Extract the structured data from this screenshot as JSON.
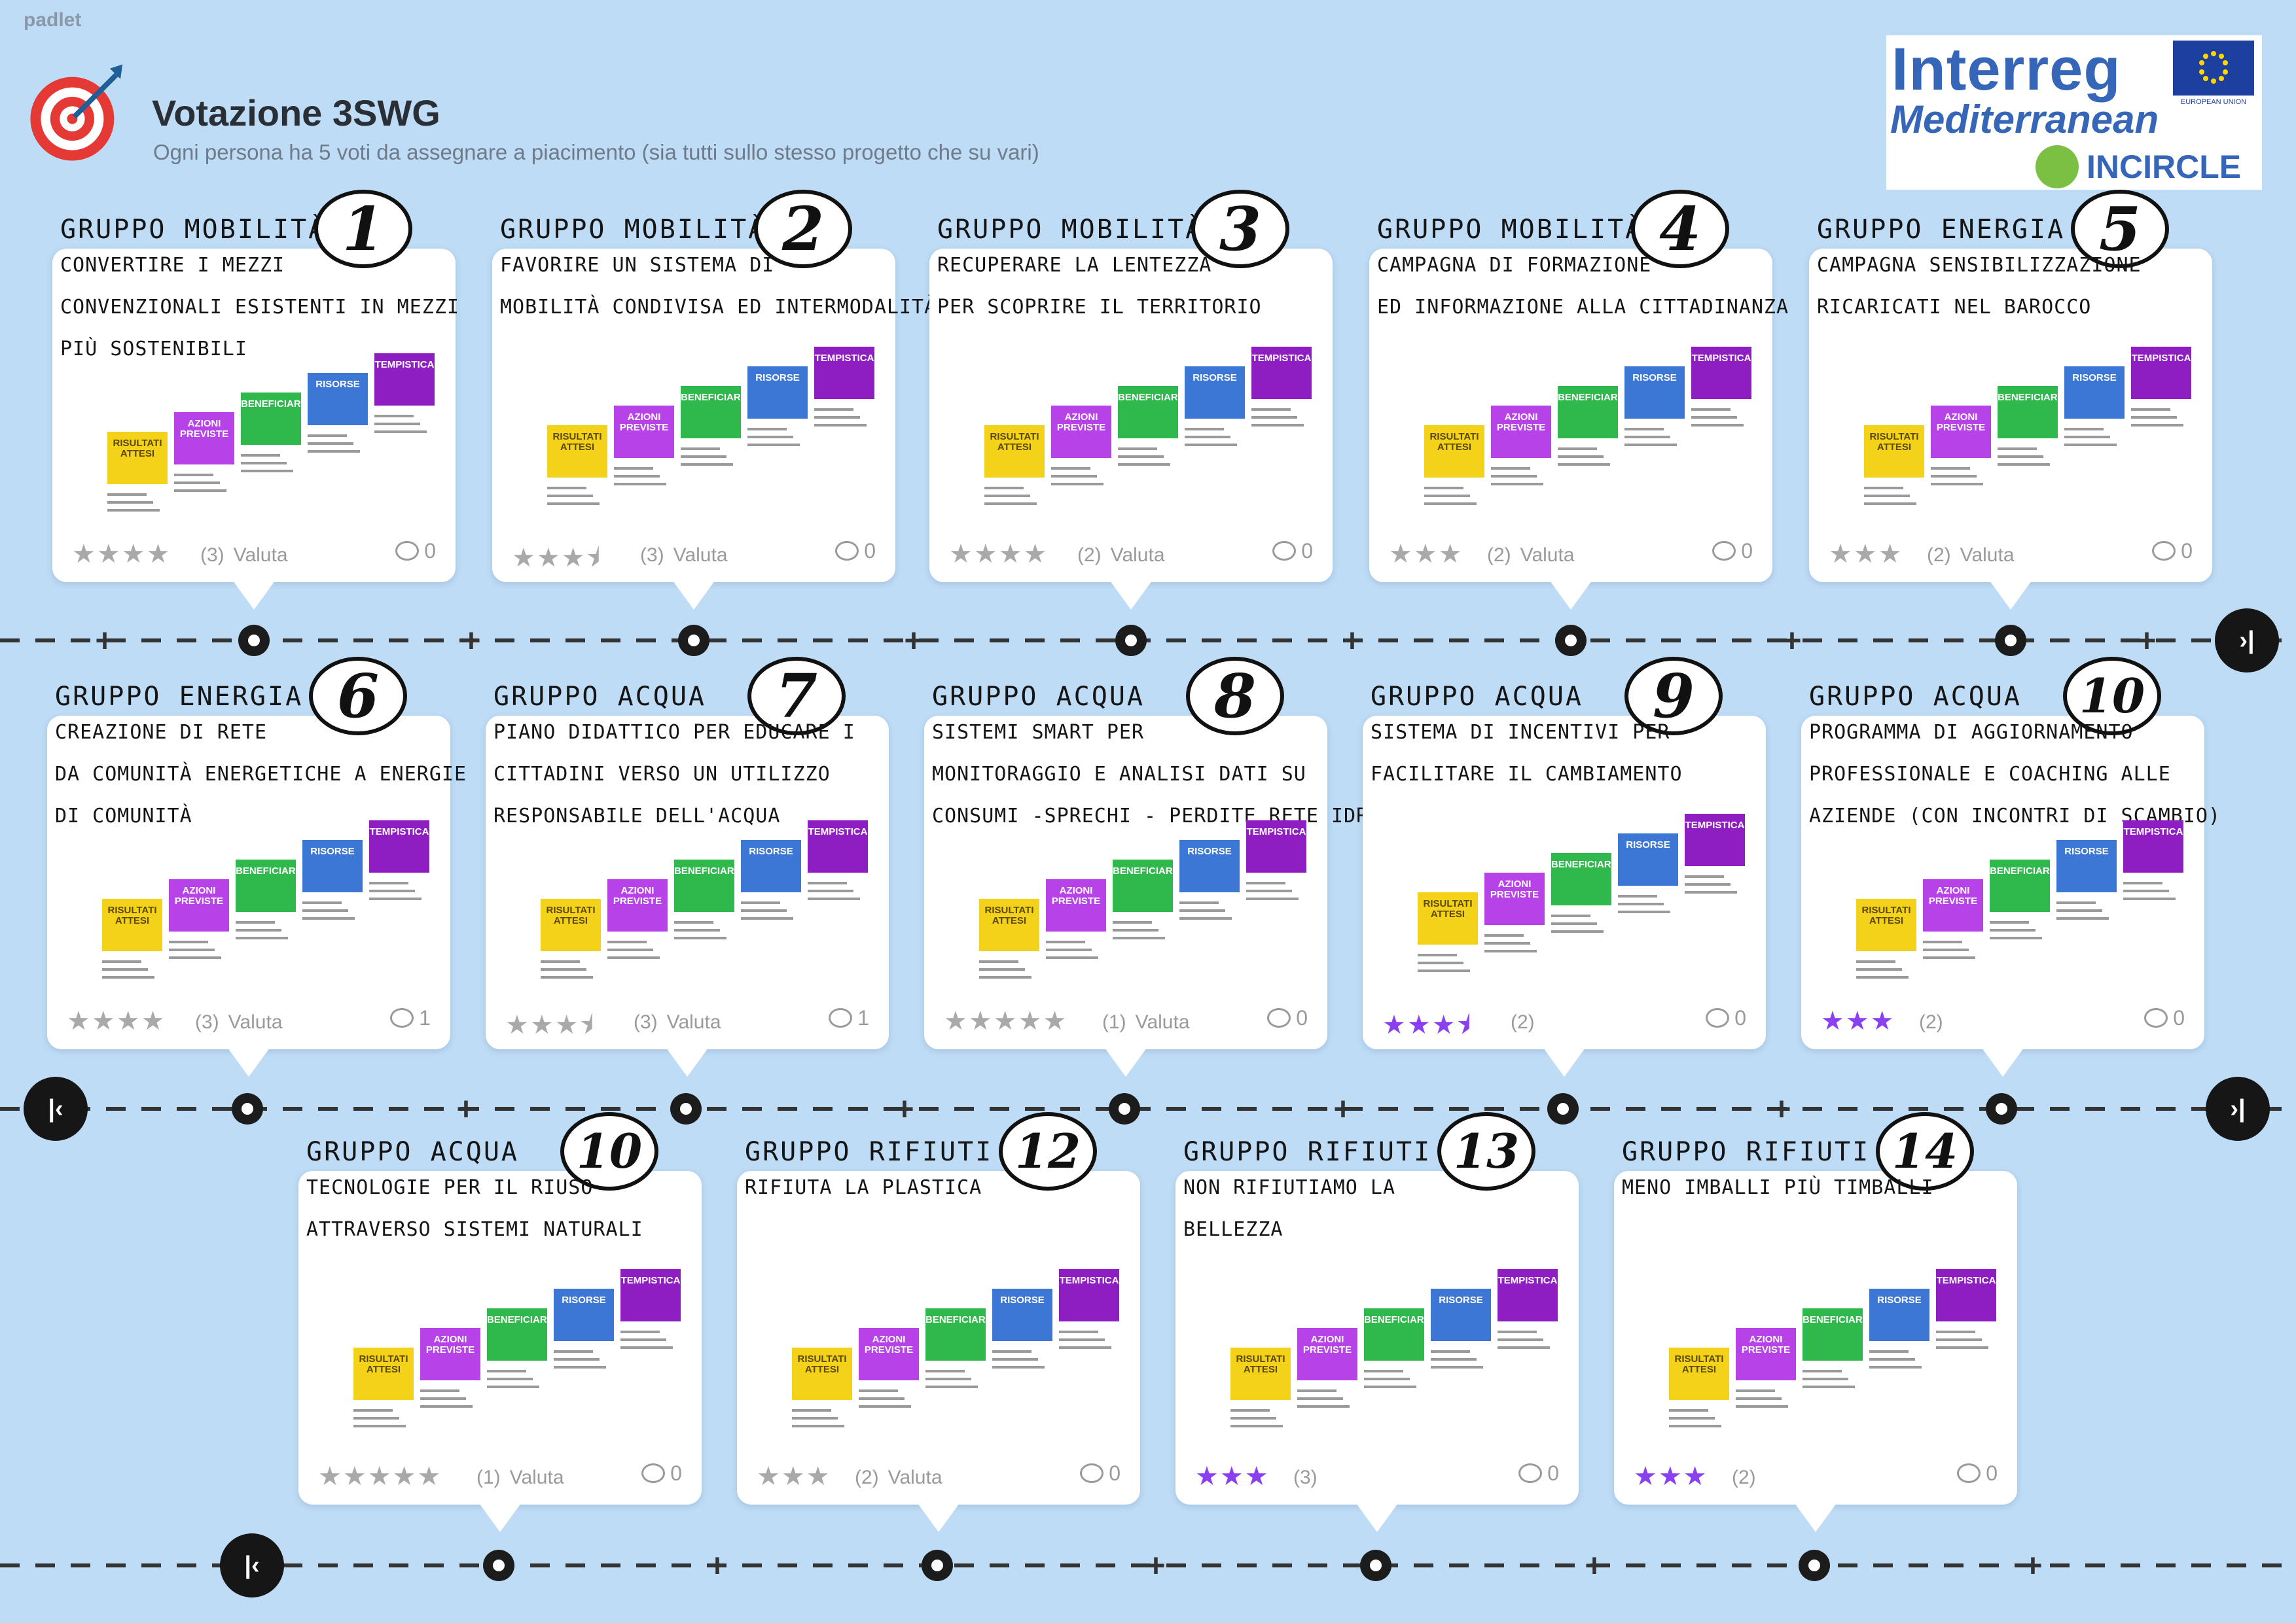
{
  "app": {
    "brand": "padlet"
  },
  "header": {
    "title": "Votazione 3SWG",
    "subtitle": "Ogni persona ha 5 voti da assegnare a piacimento (sia tutti sullo stesso progetto che su vari)"
  },
  "logo": {
    "interreg": "Interreg",
    "mediterranean": "Mediterranean",
    "eu_label": "EUROPEAN UNION",
    "incircle": "INCIRCLE"
  },
  "colors": {
    "background": "#bfdcf6",
    "star_voted": "#8a3ff0",
    "star_default": "#a9a9a9"
  },
  "thumbnail_labels": {
    "risultati": "RISULTATI ATTESI",
    "azioni": "AZIONI PREVISTE",
    "beneficiari": "BENEFICIARI",
    "risorse": "RISORSE",
    "tempistica": "TEMPISTICA"
  },
  "cards": [
    {
      "number": "1",
      "group": "GRUPPO MOBILITÀ",
      "description": [
        "CONVERTIRE I MEZZI",
        "CONVENZIONALI ESISTENTI IN MEZZI",
        "PIÙ SOSTENIBILI"
      ],
      "stars": "★★★★",
      "star_color": "grey",
      "count": "(3)",
      "rate_label": "Valuta",
      "comments": "0"
    },
    {
      "number": "2",
      "group": "GRUPPO MOBILITÀ",
      "description": [
        "FAVORIRE UN SISTEMA DI",
        "MOBILITÀ CONDIVISA ED INTERMODALITÀ"
      ],
      "stars": "★★★⯨",
      "star_color": "grey",
      "count": "(3)",
      "rate_label": "Valuta",
      "comments": "0"
    },
    {
      "number": "3",
      "group": "GRUPPO MOBILITÀ",
      "description": [
        "RECUPERARE LA LENTEZZA",
        "PER SCOPRIRE IL TERRITORIO"
      ],
      "stars": "★★★★",
      "star_color": "grey",
      "count": "(2)",
      "rate_label": "Valuta",
      "comments": "0"
    },
    {
      "number": "4",
      "group": "GRUPPO MOBILITÀ",
      "description": [
        "CAMPAGNA DI FORMAZIONE",
        "ED INFORMAZIONE ALLA CITTADINANZA"
      ],
      "stars": "★★★",
      "star_color": "grey",
      "count": "(2)",
      "rate_label": "Valuta",
      "comments": "0"
    },
    {
      "number": "5",
      "group": "GRUPPO ENERGIA",
      "description": [
        "CAMPAGNA SENSIBILIZZAZIONE",
        "RICARICATI NEL BAROCCO"
      ],
      "stars": "★★★",
      "star_color": "grey",
      "count": "(2)",
      "rate_label": "Valuta",
      "comments": "0"
    },
    {
      "number": "6",
      "group": "GRUPPO ENERGIA",
      "description": [
        "CREAZIONE DI RETE",
        "DA COMUNITÀ ENERGETICHE A ENERGIE",
        "DI COMUNITÀ"
      ],
      "stars": "★★★★",
      "star_color": "grey",
      "count": "(3)",
      "rate_label": "Valuta",
      "comments": "1"
    },
    {
      "number": "7",
      "group": "GRUPPO ACQUA",
      "description": [
        "PIANO DIDATTICO PER EDUCARE I",
        "CITTADINI VERSO UN UTILIZZO",
        "RESPONSABILE DELL'ACQUA"
      ],
      "stars": "★★★⯨",
      "star_color": "grey",
      "count": "(3)",
      "rate_label": "Valuta",
      "comments": "1"
    },
    {
      "number": "8",
      "group": "GRUPPO ACQUA",
      "description": [
        "SISTEMI SMART PER",
        "MONITORAGGIO E ANALISI DATI SU",
        "CONSUMI -SPRECHI - PERDITE RETE IDRICA"
      ],
      "stars": "★★★★★",
      "star_color": "grey",
      "count": "(1)",
      "rate_label": "Valuta",
      "comments": "0"
    },
    {
      "number": "9",
      "group": "GRUPPO ACQUA",
      "description": [
        "SISTEMA DI INCENTIVI PER",
        "FACILITARE IL CAMBIAMENTO"
      ],
      "stars": "★★★⯨",
      "star_color": "purple",
      "count": "(2)",
      "rate_label": "",
      "comments": "0"
    },
    {
      "number": "10",
      "group": "GRUPPO ACQUA",
      "description": [
        "PROGRAMMA DI AGGIORNAMENTO",
        "PROFESSIONALE E COACHING ALLE",
        "AZIENDE (CON INCONTRI DI SCAMBIO)"
      ],
      "stars": "★★★",
      "star_color": "purple",
      "count": "(2)",
      "rate_label": "",
      "comments": "0"
    },
    {
      "number": "10",
      "group": "GRUPPO ACQUA",
      "description": [
        "TECNOLOGIE PER IL RIUSO",
        "ATTRAVERSO SISTEMI NATURALI"
      ],
      "stars": "★★★★★",
      "star_color": "grey",
      "count": "(1)",
      "rate_label": "Valuta",
      "comments": "0"
    },
    {
      "number": "12",
      "group": "GRUPPO RIFIUTI",
      "description": [
        "RIFIUTA LA PLASTICA"
      ],
      "stars": "★★★",
      "star_color": "grey",
      "count": "(2)",
      "rate_label": "Valuta",
      "comments": "0"
    },
    {
      "number": "13",
      "group": "GRUPPO RIFIUTI",
      "description": [
        "NON RIFIUTIAMO LA",
        "BELLEZZA"
      ],
      "stars": "★★★",
      "star_color": "purple",
      "count": "(3)",
      "rate_label": "",
      "comments": "0"
    },
    {
      "number": "14",
      "group": "GRUPPO RIFIUTI",
      "description": [
        "MENO IMBALLI PIÙ TIMBALLI"
      ],
      "stars": "★★★",
      "star_color": "purple",
      "count": "(2)",
      "rate_label": "",
      "comments": "0"
    }
  ],
  "nav": {
    "next": "›|",
    "prev": "|‹"
  }
}
